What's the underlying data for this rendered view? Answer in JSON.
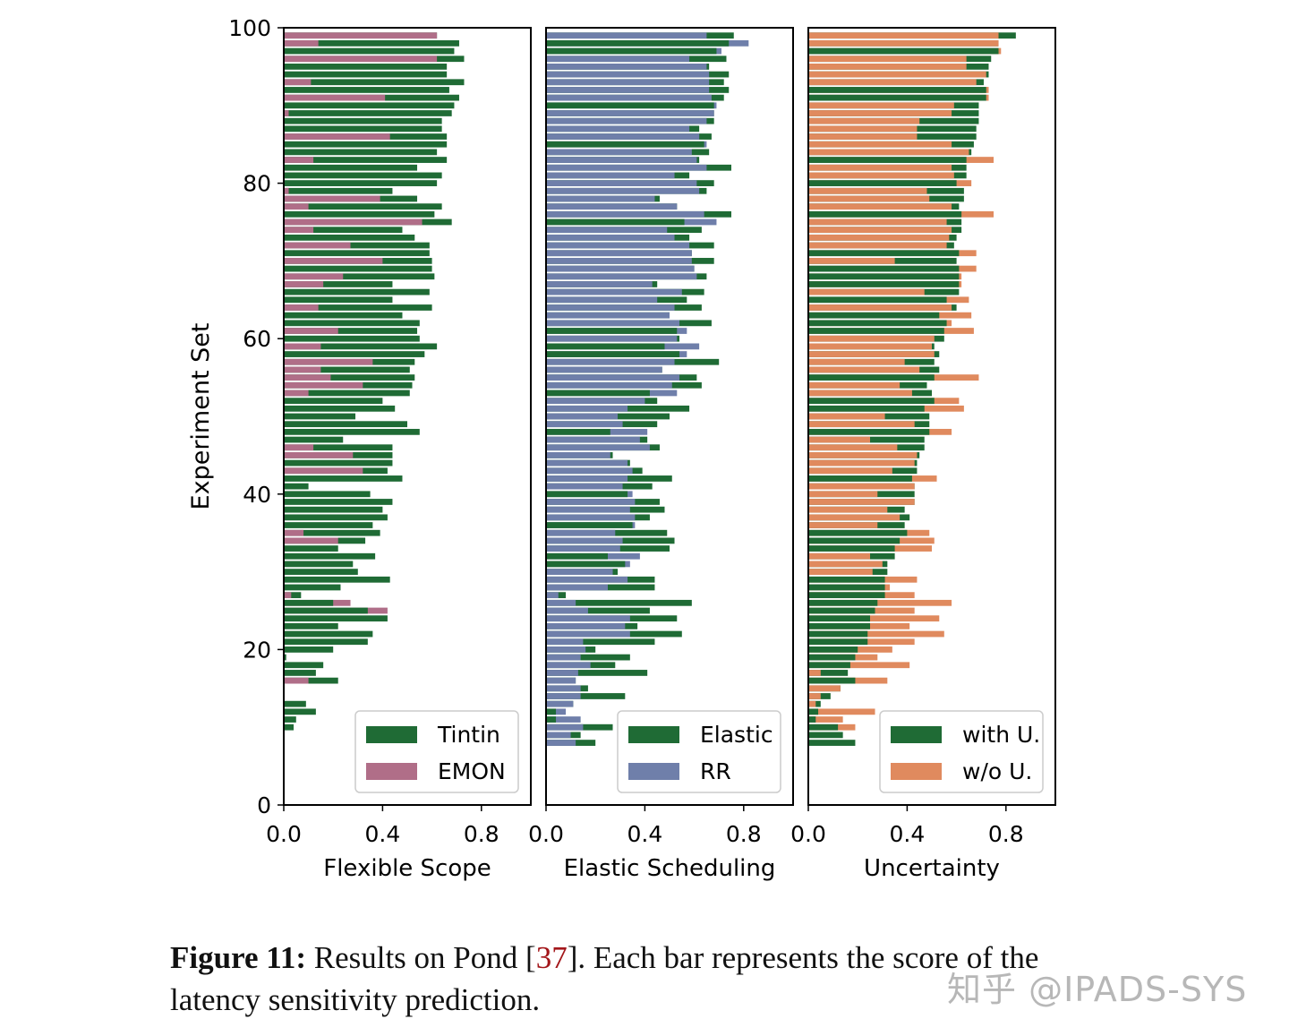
{
  "chart_data": {
    "type": "bar",
    "orientation": "horizontal",
    "shared_ylabel": "Experiment Set",
    "ylim": [
      0,
      100
    ],
    "yticks": [
      "0",
      "20",
      "40",
      "60",
      "80",
      "100"
    ],
    "xlim": [
      0,
      1.0
    ],
    "xticks": [
      "0.0",
      "0.4",
      "0.8"
    ],
    "categories_note": "experiment sets 1-100 (bar k drawn at y = 100 - k)",
    "panels": [
      {
        "xlabel": "Flexible Scope",
        "legend": "lower right",
        "series": [
          {
            "name": "Tintin",
            "color": "#1f6b35",
            "values": [
              0.62,
              0.71,
              0.69,
              0.73,
              0.66,
              0.66,
              0.73,
              0.67,
              0.71,
              0.69,
              0.68,
              0.64,
              0.64,
              0.66,
              0.66,
              0.62,
              0.66,
              0.54,
              0.64,
              0.62,
              0.44,
              0.54,
              0.64,
              0.61,
              0.68,
              0.48,
              0.53,
              0.59,
              0.59,
              0.6,
              0.6,
              0.61,
              0.44,
              0.59,
              0.44,
              0.6,
              0.48,
              0.55,
              0.54,
              0.55,
              0.62,
              0.57,
              0.53,
              0.51,
              0.53,
              0.52,
              0.51,
              0.4,
              0.45,
              0.29,
              0.5,
              0.55,
              0.24,
              0.44,
              0.44,
              0.44,
              0.42,
              0.48,
              0.1,
              0.35,
              0.44,
              0.4,
              0.42,
              0.36,
              0.39,
              0.33,
              0.22,
              0.37,
              0.28,
              0.3,
              0.43,
              0.23,
              0.07,
              0.2,
              0.34,
              0.42,
              0.22,
              0.36,
              0.34,
              0.2,
              0.01,
              0.16,
              0.13,
              0.22,
              0,
              0,
              0.09,
              0.13,
              0.05,
              0.04,
              0,
              0,
              0,
              0,
              0,
              0,
              0,
              0,
              0,
              0
            ]
          },
          {
            "name": "EMON",
            "color": "#b06e88",
            "values": [
              0.62,
              0.14,
              0,
              0.62,
              0,
              0,
              0.11,
              0,
              0.41,
              0,
              0.02,
              0,
              0,
              0.43,
              0,
              0,
              0.12,
              0,
              0,
              0,
              0.02,
              0.39,
              0.1,
              0,
              0.56,
              0.12,
              0,
              0.27,
              0,
              0.4,
              0,
              0.24,
              0.16,
              0,
              0,
              0.14,
              0,
              0,
              0.22,
              0,
              0.15,
              0,
              0.36,
              0.15,
              0.19,
              0.32,
              0.1,
              0,
              0,
              0,
              0,
              0,
              0,
              0.12,
              0.28,
              0,
              0.32,
              0,
              0,
              0,
              0,
              0,
              0,
              0,
              0.08,
              0.22,
              0,
              0,
              0,
              0,
              0,
              0,
              0.03,
              0.27,
              0.42,
              0,
              0,
              0,
              0,
              0,
              0,
              0,
              0,
              0.1,
              0,
              0,
              0,
              0,
              0,
              0,
              0,
              0,
              0,
              0,
              0,
              0,
              0,
              0,
              0,
              0
            ]
          }
        ]
      },
      {
        "xlabel": "Elastic Scheduling",
        "legend": "lower right",
        "series": [
          {
            "name": "Elastic",
            "color": "#1f6b35",
            "values": [
              0.76,
              0.74,
              0.69,
              0.73,
              0.66,
              0.74,
              0.72,
              0.74,
              0.72,
              0.68,
              0.68,
              0.68,
              0.62,
              0.67,
              0.64,
              0.66,
              0.62,
              0.75,
              0.58,
              0.68,
              0.65,
              0.46,
              0.53,
              0.75,
              0.56,
              0.63,
              0.58,
              0.68,
              0.59,
              0.68,
              0.6,
              0.65,
              0.45,
              0.64,
              0.57,
              0.63,
              0.5,
              0.67,
              0.53,
              0.54,
              0.48,
              0.54,
              0.7,
              0.47,
              0.61,
              0.63,
              0.42,
              0.45,
              0.58,
              0.5,
              0.45,
              0.26,
              0.41,
              0.46,
              0.27,
              0.34,
              0.39,
              0.51,
              0.43,
              0.33,
              0.46,
              0.48,
              0.42,
              0.35,
              0.49,
              0.52,
              0.5,
              0.25,
              0.32,
              0.29,
              0.44,
              0.44,
              0.08,
              0.59,
              0.42,
              0.53,
              0.37,
              0.55,
              0.44,
              0.2,
              0.34,
              0.28,
              0.41,
              0.12,
              0.17,
              0.32,
              0.11,
              0.04,
              0.04,
              0.27,
              0.14,
              0.2,
              0,
              0,
              0,
              0,
              0,
              0,
              0,
              0
            ]
          },
          {
            "name": "RR",
            "color": "#6f7faa",
            "values": [
              0.65,
              0.82,
              0.71,
              0.58,
              0.65,
              0.66,
              0.66,
              0.66,
              0.67,
              0.69,
              0.68,
              0.65,
              0.58,
              0.62,
              0.65,
              0.59,
              0.61,
              0.65,
              0.52,
              0.61,
              0.62,
              0.44,
              0.53,
              0.64,
              0.69,
              0.49,
              0.52,
              0.58,
              0.59,
              0.59,
              0.6,
              0.61,
              0.43,
              0.55,
              0.45,
              0.52,
              0.5,
              0.54,
              0.57,
              0.53,
              0.62,
              0.57,
              0.52,
              0.47,
              0.54,
              0.51,
              0.53,
              0.4,
              0.33,
              0.29,
              0.31,
              0.41,
              0.38,
              0.42,
              0.26,
              0.33,
              0.35,
              0.33,
              0.31,
              0.35,
              0.36,
              0.34,
              0.36,
              0.36,
              0.28,
              0.31,
              0.3,
              0.38,
              0.34,
              0.27,
              0.33,
              0.25,
              0.05,
              0.12,
              0.17,
              0.34,
              0.32,
              0.34,
              0.15,
              0.16,
              0.14,
              0.18,
              0.13,
              0.12,
              0.14,
              0.14,
              0.11,
              0.08,
              0.14,
              0.15,
              0.1,
              0.12,
              0,
              0,
              0,
              0,
              0,
              0,
              0,
              0
            ]
          }
        ]
      },
      {
        "xlabel": "Uncertainty",
        "legend": "lower right",
        "series": [
          {
            "name": "with U.",
            "color": "#1f6b35",
            "values": [
              0.84,
              0.77,
              0.77,
              0.74,
              0.73,
              0.73,
              0.71,
              0.72,
              0.72,
              0.69,
              0.69,
              0.69,
              0.68,
              0.68,
              0.67,
              0.66,
              0.64,
              0.64,
              0.64,
              0.6,
              0.63,
              0.63,
              0.61,
              0.62,
              0.62,
              0.62,
              0.6,
              0.59,
              0.61,
              0.6,
              0.61,
              0.61,
              0.61,
              0.61,
              0.56,
              0.6,
              0.53,
              0.56,
              0.55,
              0.55,
              0.51,
              0.53,
              0.51,
              0.53,
              0.51,
              0.48,
              0.5,
              0.51,
              0.47,
              0.49,
              0.49,
              0.49,
              0.47,
              0.47,
              0.45,
              0.44,
              0.44,
              0.42,
              0.43,
              0.43,
              0.43,
              0.39,
              0.41,
              0.39,
              0.4,
              0.37,
              0.35,
              0.35,
              0.32,
              0.32,
              0.31,
              0.31,
              0.31,
              0.28,
              0.27,
              0.25,
              0.25,
              0.24,
              0.24,
              0.2,
              0.19,
              0.17,
              0.16,
              0.19,
              0.13,
              0.09,
              0.05,
              0.04,
              0.03,
              0.12,
              0.14,
              0.19,
              0,
              0,
              0,
              0,
              0,
              0,
              0,
              0
            ]
          },
          {
            "name": "w/o U.",
            "color": "#e08a5e",
            "values": [
              0.77,
              0.77,
              0.78,
              0.64,
              0.64,
              0.72,
              0.68,
              0.73,
              0.73,
              0.59,
              0.58,
              0.45,
              0.44,
              0.44,
              0.58,
              0.65,
              0.75,
              0.58,
              0.59,
              0.66,
              0.48,
              0.49,
              0.58,
              0.75,
              0.56,
              0.58,
              0.57,
              0.56,
              0.68,
              0.35,
              0.68,
              0.62,
              0.62,
              0.47,
              0.65,
              0.58,
              0.66,
              0.58,
              0.67,
              0.51,
              0.5,
              0.51,
              0.39,
              0.45,
              0.69,
              0.37,
              0.42,
              0.61,
              0.63,
              0.31,
              0.43,
              0.58,
              0.25,
              0.36,
              0.44,
              0.43,
              0.34,
              0.52,
              0.43,
              0.28,
              0.43,
              0.32,
              0.37,
              0.28,
              0.49,
              0.51,
              0.5,
              0.25,
              0.3,
              0.26,
              0.44,
              0.33,
              0.43,
              0.58,
              0.43,
              0.53,
              0.41,
              0.55,
              0.43,
              0.34,
              0.28,
              0.41,
              0.05,
              0.32,
              0.13,
              0.05,
              0.03,
              0.27,
              0.14,
              0.19,
              0,
              0,
              0,
              0,
              0,
              0,
              0,
              0,
              0,
              0
            ]
          }
        ]
      }
    ]
  },
  "caption": {
    "label": "Figure 11:",
    "text_before_ref": " Results on Pond [",
    "ref": "37",
    "text_after_ref": "]. Each bar represents the score of the latency sensitivity prediction."
  },
  "watermark": "知乎 @IPADS-SYS"
}
